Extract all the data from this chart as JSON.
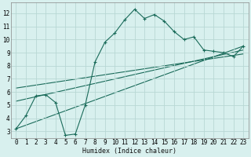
{
  "xlabel": "Humidex (Indice chaleur)",
  "bg_color": "#d8f0ee",
  "grid_color": "#b8d8d4",
  "line_color": "#1a6b5a",
  "main_x": [
    0,
    1,
    2,
    3,
    4,
    5,
    6,
    7,
    8,
    9,
    10,
    11,
    12,
    13,
    14,
    15,
    16,
    17,
    18,
    19,
    20,
    21,
    22,
    23
  ],
  "main_y": [
    3.2,
    4.2,
    5.7,
    5.8,
    5.2,
    2.7,
    2.8,
    5.0,
    8.3,
    9.8,
    10.5,
    11.5,
    12.3,
    11.6,
    11.9,
    11.4,
    10.6,
    10.0,
    10.2,
    9.2,
    9.1,
    9.0,
    8.7,
    9.5
  ],
  "trend_lines": [
    {
      "x0": 0,
      "y0": 3.2,
      "x1": 23,
      "y1": 9.5
    },
    {
      "x0": 0,
      "y0": 5.3,
      "x1": 23,
      "y1": 9.2
    },
    {
      "x0": 0,
      "y0": 6.3,
      "x1": 23,
      "y1": 8.9
    }
  ],
  "xlim": [
    -0.5,
    23.5
  ],
  "ylim": [
    2.5,
    12.8
  ],
  "xticks": [
    0,
    1,
    2,
    3,
    4,
    5,
    6,
    7,
    8,
    9,
    10,
    11,
    12,
    13,
    14,
    15,
    16,
    17,
    18,
    19,
    20,
    21,
    22,
    23
  ],
  "yticks": [
    3,
    4,
    5,
    6,
    7,
    8,
    9,
    10,
    11,
    12
  ]
}
